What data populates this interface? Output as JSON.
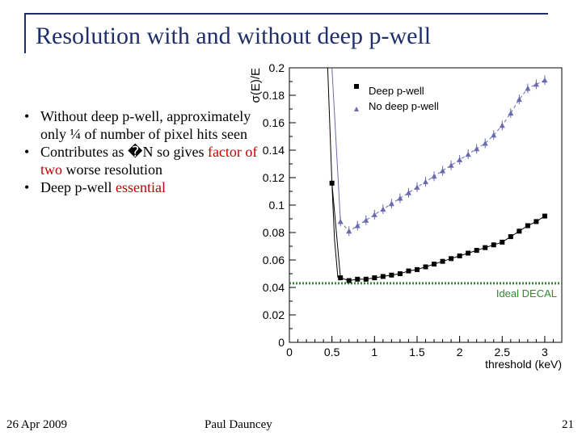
{
  "slide": {
    "title": "Resolution with and without deep p-well",
    "bullets": [
      {
        "parts": [
          "Without deep p-well, approximately only ¼ of number of pixel hits seen"
        ]
      },
      {
        "parts": [
          "Contributes as �N so gives ",
          "factor of two",
          " worse resolution"
        ]
      },
      {
        "parts": [
          "Deep p-well ",
          "essential"
        ]
      }
    ],
    "footer": {
      "date": "26 Apr 2009",
      "author": "Paul Dauncey",
      "page": "21"
    }
  },
  "colors": {
    "title": "#1f2f6b",
    "highlight": "#c00000",
    "deep": "#000000",
    "nodeep": "#6a6ab0",
    "ideal": "#2e8b2e"
  },
  "chart_data": {
    "type": "scatter",
    "title": "",
    "xlabel": "threshold (keV)",
    "ylabel": "σ(E)/E",
    "xlim": [
      0,
      3.2
    ],
    "ylim": [
      0,
      0.2
    ],
    "xticks": [
      "0",
      "0.5",
      "1",
      "1.5",
      "2",
      "2.5",
      "3"
    ],
    "yticks": [
      "0",
      "0.02",
      "0.04",
      "0.06",
      "0.08",
      "0.1",
      "0.12",
      "0.14",
      "0.16",
      "0.18",
      "0.2"
    ],
    "grid": false,
    "legend_position": "top-right",
    "series": [
      {
        "name": "Deep p-well",
        "marker": "square",
        "color": "#000000",
        "x": [
          0.5,
          0.6,
          0.7,
          0.8,
          0.9,
          1.0,
          1.1,
          1.2,
          1.3,
          1.4,
          1.5,
          1.6,
          1.7,
          1.8,
          1.9,
          2.0,
          2.1,
          2.2,
          2.3,
          2.4,
          2.5,
          2.6,
          2.7,
          2.8,
          2.9,
          3.0
        ],
        "y": [
          0.116,
          0.047,
          0.045,
          0.046,
          0.046,
          0.047,
          0.048,
          0.049,
          0.05,
          0.052,
          0.053,
          0.055,
          0.057,
          0.059,
          0.061,
          0.063,
          0.065,
          0.067,
          0.069,
          0.071,
          0.073,
          0.077,
          0.081,
          0.085,
          0.088,
          0.092
        ]
      },
      {
        "name": "No deep p-well",
        "marker": "triangle",
        "color": "#6a6ab0",
        "x": [
          0.6,
          0.7,
          0.8,
          0.9,
          1.0,
          1.1,
          1.2,
          1.3,
          1.4,
          1.5,
          1.6,
          1.7,
          1.8,
          1.9,
          2.0,
          2.1,
          2.2,
          2.3,
          2.4,
          2.5,
          2.6,
          2.7,
          2.8,
          2.9,
          3.0
        ],
        "y": [
          0.088,
          0.081,
          0.085,
          0.089,
          0.093,
          0.097,
          0.101,
          0.105,
          0.109,
          0.113,
          0.117,
          0.121,
          0.125,
          0.129,
          0.133,
          0.137,
          0.141,
          0.145,
          0.151,
          0.158,
          0.167,
          0.177,
          0.185,
          0.188,
          0.191
        ]
      }
    ],
    "steep_branch": {
      "x": [
        0.45,
        0.5,
        0.53,
        0.57
      ],
      "y": [
        0.2,
        0.116,
        0.075,
        0.047
      ]
    },
    "reference_line": {
      "label": "Ideal DECAL",
      "y": 0.043,
      "color": "#2e8b2e",
      "style": "dotted"
    }
  }
}
